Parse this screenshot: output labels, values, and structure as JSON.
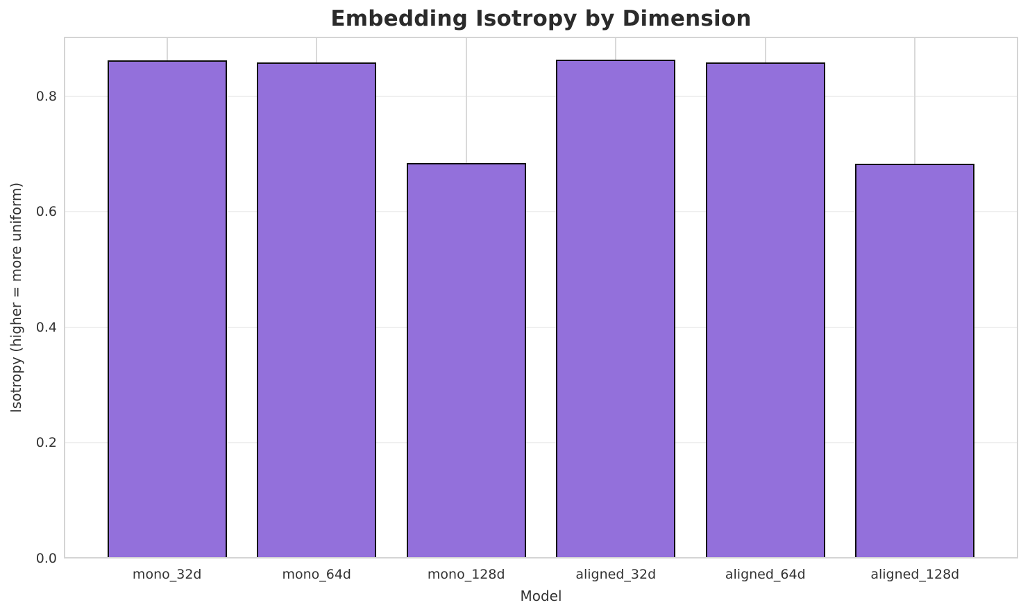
{
  "chart_data": {
    "type": "bar",
    "title": "Embedding Isotropy by Dimension",
    "xlabel": "Model",
    "ylabel": "Isotropy (higher = more uniform)",
    "categories": [
      "mono_32d",
      "mono_64d",
      "mono_128d",
      "aligned_32d",
      "aligned_64d",
      "aligned_128d"
    ],
    "values": [
      0.862,
      0.858,
      0.684,
      0.863,
      0.859,
      0.683
    ],
    "yticks": [
      0.0,
      0.2,
      0.4,
      0.6,
      0.8
    ],
    "ytick_labels": [
      "0.0",
      "0.2",
      "0.4",
      "0.6",
      "0.8"
    ],
    "ylim": [
      0,
      0.903
    ],
    "xlim": [
      -0.69,
      5.69
    ],
    "bar_width": 0.8,
    "grid": "on",
    "legend": "none",
    "colors": {
      "bar_fill": "#9370DB",
      "bar_edge": "#0d0d0d",
      "grid_h": "#f0f0f0",
      "grid_v": "#d9d9d9",
      "spine": "#d4d4d4",
      "text": "#333333",
      "title": "#2b2b2b",
      "background": "#ffffff"
    }
  }
}
